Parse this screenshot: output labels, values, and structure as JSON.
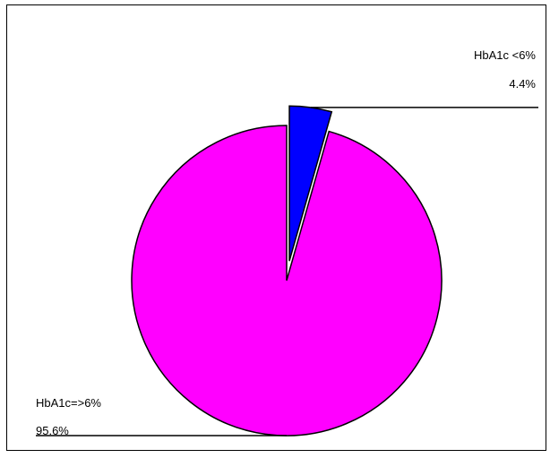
{
  "chart_data": {
    "type": "pie",
    "slices": [
      {
        "label": "HbA1c <6%",
        "value": 4.4,
        "value_label": "4.4%",
        "color": "#0000ff",
        "exploded": true
      },
      {
        "label": "HbA1c=>6%",
        "value": 95.6,
        "value_label": "95.6%",
        "color": "#ff00ff",
        "exploded": false
      }
    ],
    "legend": "none",
    "grid": false
  }
}
